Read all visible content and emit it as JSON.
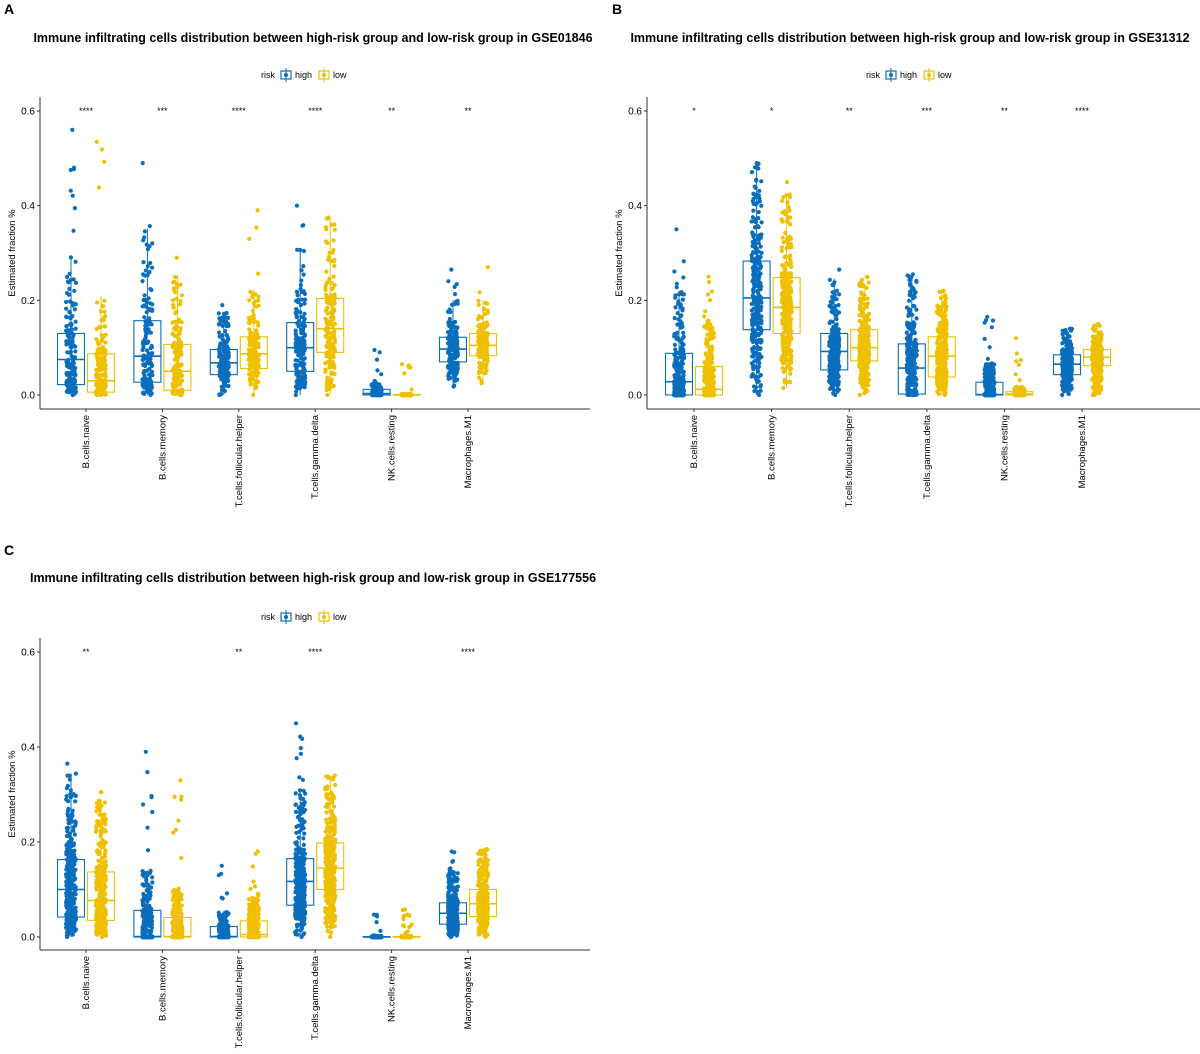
{
  "colors": {
    "high": "#0A6EBD",
    "low": "#EFC000"
  },
  "chart_data": [
    {
      "panel": "A",
      "type": "box",
      "title": "Immune infiltrating cells distribution between high-risk group and low-risk group in GSE01846",
      "ylabel": "Estimated fraction %",
      "ylim": [
        0,
        0.6
      ],
      "yticks": [
        "0.0",
        "0.2",
        "0.4",
        "0.6"
      ],
      "legend_title": "risk",
      "legend_placement": "top",
      "categories": [
        "B.cells.naive",
        "B.cells.memory",
        "T.cells.follicular.helper",
        "T.cells.gamma.delta",
        "NK.cells.resting",
        "Macrophages.M1"
      ],
      "significance": [
        "****",
        "***",
        "****",
        "****",
        "**",
        "**"
      ],
      "series": [
        {
          "name": "high",
          "min": [
            0,
            0,
            0,
            0,
            0,
            0.018
          ],
          "q1": [
            0.022,
            0.027,
            0.043,
            0.05,
            0,
            0.07
          ],
          "median": [
            0.075,
            0.082,
            0.068,
            0.1,
            0.003,
            0.097
          ],
          "q3": [
            0.13,
            0.157,
            0.096,
            0.153,
            0.012,
            0.122
          ],
          "max": [
            0.56,
            0.49,
            0.19,
            0.4,
            0.095,
            0.265
          ]
        },
        {
          "name": "low",
          "min": [
            0,
            0,
            0,
            0,
            0,
            0.025
          ],
          "q1": [
            0.006,
            0.01,
            0.056,
            0.09,
            0,
            0.083
          ],
          "median": [
            0.03,
            0.05,
            0.087,
            0.14,
            0,
            0.105
          ],
          "q3": [
            0.087,
            0.107,
            0.123,
            0.204,
            0.001,
            0.13
          ],
          "max": [
            0.535,
            0.29,
            0.39,
            0.375,
            0.065,
            0.27
          ]
        }
      ]
    },
    {
      "panel": "B",
      "type": "box",
      "title": "Immune infiltrating cells distribution between high-risk group and low-risk group in GSE31312",
      "ylabel": "Estimated fraction %",
      "ylim": [
        0,
        0.6
      ],
      "yticks": [
        "0.0",
        "0.2",
        "0.4",
        "0.6"
      ],
      "legend_title": "risk",
      "legend_placement": "top",
      "categories": [
        "B.cells.naive",
        "B.cells.memory",
        "T.cells.follicular.helper",
        "T.cells.gamma.delta",
        "NK.cells.resting",
        "Macrophages.M1"
      ],
      "significance": [
        "*",
        "*",
        "**",
        "***",
        "**",
        "****"
      ],
      "series": [
        {
          "name": "high",
          "min": [
            0,
            0,
            0,
            0,
            0,
            0
          ],
          "q1": [
            0,
            0.138,
            0.053,
            0.002,
            0,
            0.043
          ],
          "median": [
            0.028,
            0.205,
            0.092,
            0.057,
            0.001,
            0.065
          ],
          "q3": [
            0.088,
            0.283,
            0.13,
            0.108,
            0.027,
            0.085
          ],
          "max": [
            0.35,
            0.49,
            0.265,
            0.255,
            0.165,
            0.14
          ]
        },
        {
          "name": "low",
          "min": [
            0,
            0.015,
            0,
            0,
            0,
            0
          ],
          "q1": [
            0,
            0.13,
            0.072,
            0.038,
            0,
            0.062
          ],
          "median": [
            0.012,
            0.185,
            0.1,
            0.082,
            0.002,
            0.08
          ],
          "q3": [
            0.06,
            0.248,
            0.138,
            0.123,
            0.007,
            0.096
          ],
          "max": [
            0.25,
            0.45,
            0.25,
            0.22,
            0.12,
            0.15
          ]
        }
      ]
    },
    {
      "panel": "C",
      "type": "box",
      "title": "Immune infiltrating cells distribution between high-risk group and low-risk group in GSE177556",
      "ylabel": "Estimated fraction %",
      "ylim": [
        0,
        0.6
      ],
      "yticks": [
        "0.0",
        "0.2",
        "0.4",
        "0.6"
      ],
      "legend_title": "risk",
      "legend_placement": "top",
      "categories": [
        "B.cells.naive",
        "B.cells.memory",
        "T.cells.follicular.helper",
        "T.cells.gamma.delta",
        "NK.cells.resting",
        "Macrophages.M1"
      ],
      "significance": [
        "**",
        "",
        "**",
        "****",
        "",
        "****"
      ],
      "series": [
        {
          "name": "high",
          "min": [
            0,
            0,
            0,
            0,
            0,
            0
          ],
          "q1": [
            0.042,
            0,
            0,
            0.067,
            0,
            0.027
          ],
          "median": [
            0.1,
            0.001,
            0.001,
            0.117,
            0,
            0.05
          ],
          "q3": [
            0.163,
            0.056,
            0.022,
            0.165,
            0.001,
            0.072
          ],
          "max": [
            0.365,
            0.39,
            0.15,
            0.45,
            0.047,
            0.18
          ]
        },
        {
          "name": "low",
          "min": [
            0,
            0,
            0,
            0,
            0,
            0
          ],
          "q1": [
            0.035,
            0,
            0,
            0.1,
            0,
            0.043
          ],
          "median": [
            0.077,
            0.001,
            0.005,
            0.145,
            0,
            0.07
          ],
          "q3": [
            0.137,
            0.041,
            0.034,
            0.198,
            0.001,
            0.1
          ],
          "max": [
            0.305,
            0.33,
            0.18,
            0.34,
            0.058,
            0.185
          ]
        }
      ]
    }
  ]
}
